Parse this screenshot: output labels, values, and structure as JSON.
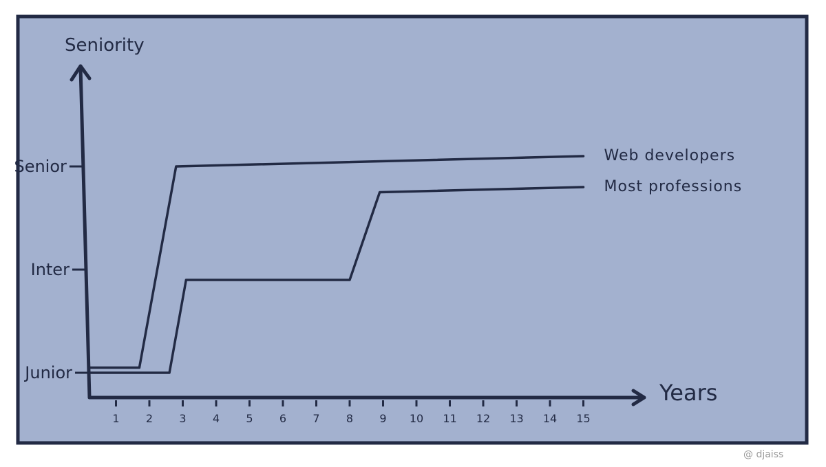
{
  "credit": "@ djaiss",
  "colors": {
    "panel": "#a3b1cf",
    "ink": "#222a44",
    "page": "#ffffff"
  },
  "chart_data": {
    "type": "line",
    "title": "",
    "xlabel": "Years",
    "ylabel": "Seniority",
    "x_ticks": [
      "1",
      "2",
      "3",
      "4",
      "5",
      "6",
      "7",
      "8",
      "9",
      "10",
      "11",
      "12",
      "13",
      "14",
      "15"
    ],
    "y_levels": [
      "Junior",
      "Inter",
      "Senior"
    ],
    "xlim": [
      0,
      16
    ],
    "ylim": [
      0,
      3.6
    ],
    "grid": false,
    "series": [
      {
        "name": "Web developers",
        "points": [
          [
            0.2,
            1.05
          ],
          [
            1.7,
            1.05
          ],
          [
            2.8,
            3.0
          ],
          [
            15,
            3.1
          ]
        ]
      },
      {
        "name": "Most professions",
        "points": [
          [
            0.2,
            1.0
          ],
          [
            2.6,
            1.0
          ],
          [
            3.1,
            1.9
          ],
          [
            8.0,
            1.9
          ],
          [
            8.9,
            2.75
          ],
          [
            15,
            2.8
          ]
        ]
      }
    ]
  }
}
